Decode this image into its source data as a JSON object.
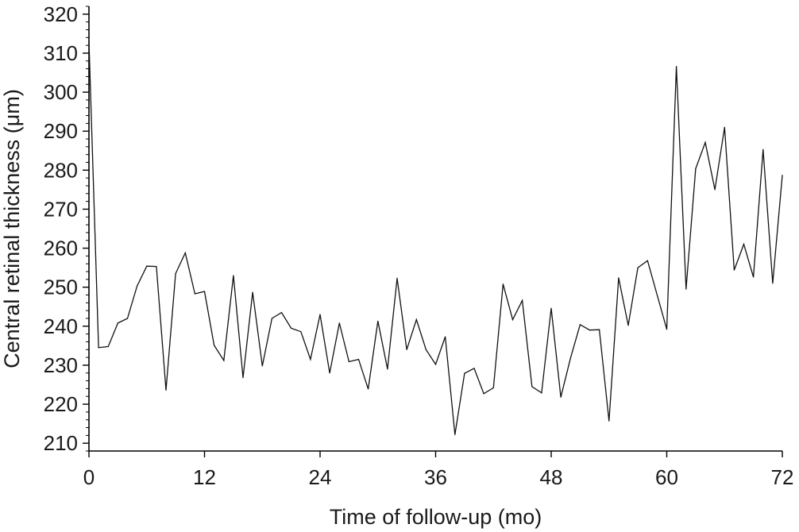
{
  "chart_data": {
    "type": "line",
    "title": "",
    "xlabel": "Time of follow-up (mo)",
    "ylabel": "Central retinal thickness (μm)",
    "xlim": [
      0,
      72
    ],
    "ylim": [
      208,
      322
    ],
    "xticks": [
      0,
      12,
      24,
      36,
      48,
      60,
      72
    ],
    "yticks": [
      210,
      220,
      230,
      240,
      250,
      260,
      270,
      280,
      290,
      300,
      310,
      320
    ],
    "grid": false,
    "legend": "none",
    "line_color": "#111111",
    "series": [
      {
        "x": [
          0,
          1,
          2,
          3,
          4,
          5,
          6,
          7,
          8,
          9,
          10,
          11,
          12,
          13,
          14,
          15,
          16,
          17,
          18,
          19,
          20,
          21,
          22,
          23,
          24,
          25,
          26,
          27,
          28,
          29,
          30,
          31,
          32,
          33,
          34,
          35,
          36,
          37,
          38,
          39,
          40,
          41,
          42,
          43,
          44,
          45,
          46,
          47,
          48,
          49,
          50,
          51,
          52,
          53,
          54,
          55,
          56,
          57,
          58,
          59,
          60,
          61,
          62,
          63,
          64,
          65,
          66,
          67,
          68,
          69,
          70,
          71,
          72
        ],
        "values": [
          313,
          234.5,
          234.8,
          240.8,
          242,
          250.3,
          255.4,
          255.3,
          223.6,
          253.5,
          258.8,
          248.3,
          248.9,
          235.1,
          231.2,
          253,
          226.8,
          248.7,
          229.8,
          242,
          243.5,
          239.5,
          238.6,
          231.5,
          243,
          228,
          240.8,
          230.9,
          231.5,
          223.9,
          241.3,
          229,
          252.3,
          234,
          241.7,
          234,
          230.2,
          237.3,
          212.2,
          227.9,
          229.2,
          222.7,
          224.2,
          250.8,
          241.7,
          246.6,
          224.5,
          222.9,
          244.6,
          221.8,
          231.8,
          240.4,
          239,
          239.1,
          215.7,
          252.4,
          240.2,
          255,
          256.8,
          248,
          239.2,
          306.6,
          249.5,
          280.4,
          287.1,
          275,
          291,
          254.4,
          261,
          252.6,
          285.3,
          251,
          278.7
        ]
      }
    ]
  }
}
